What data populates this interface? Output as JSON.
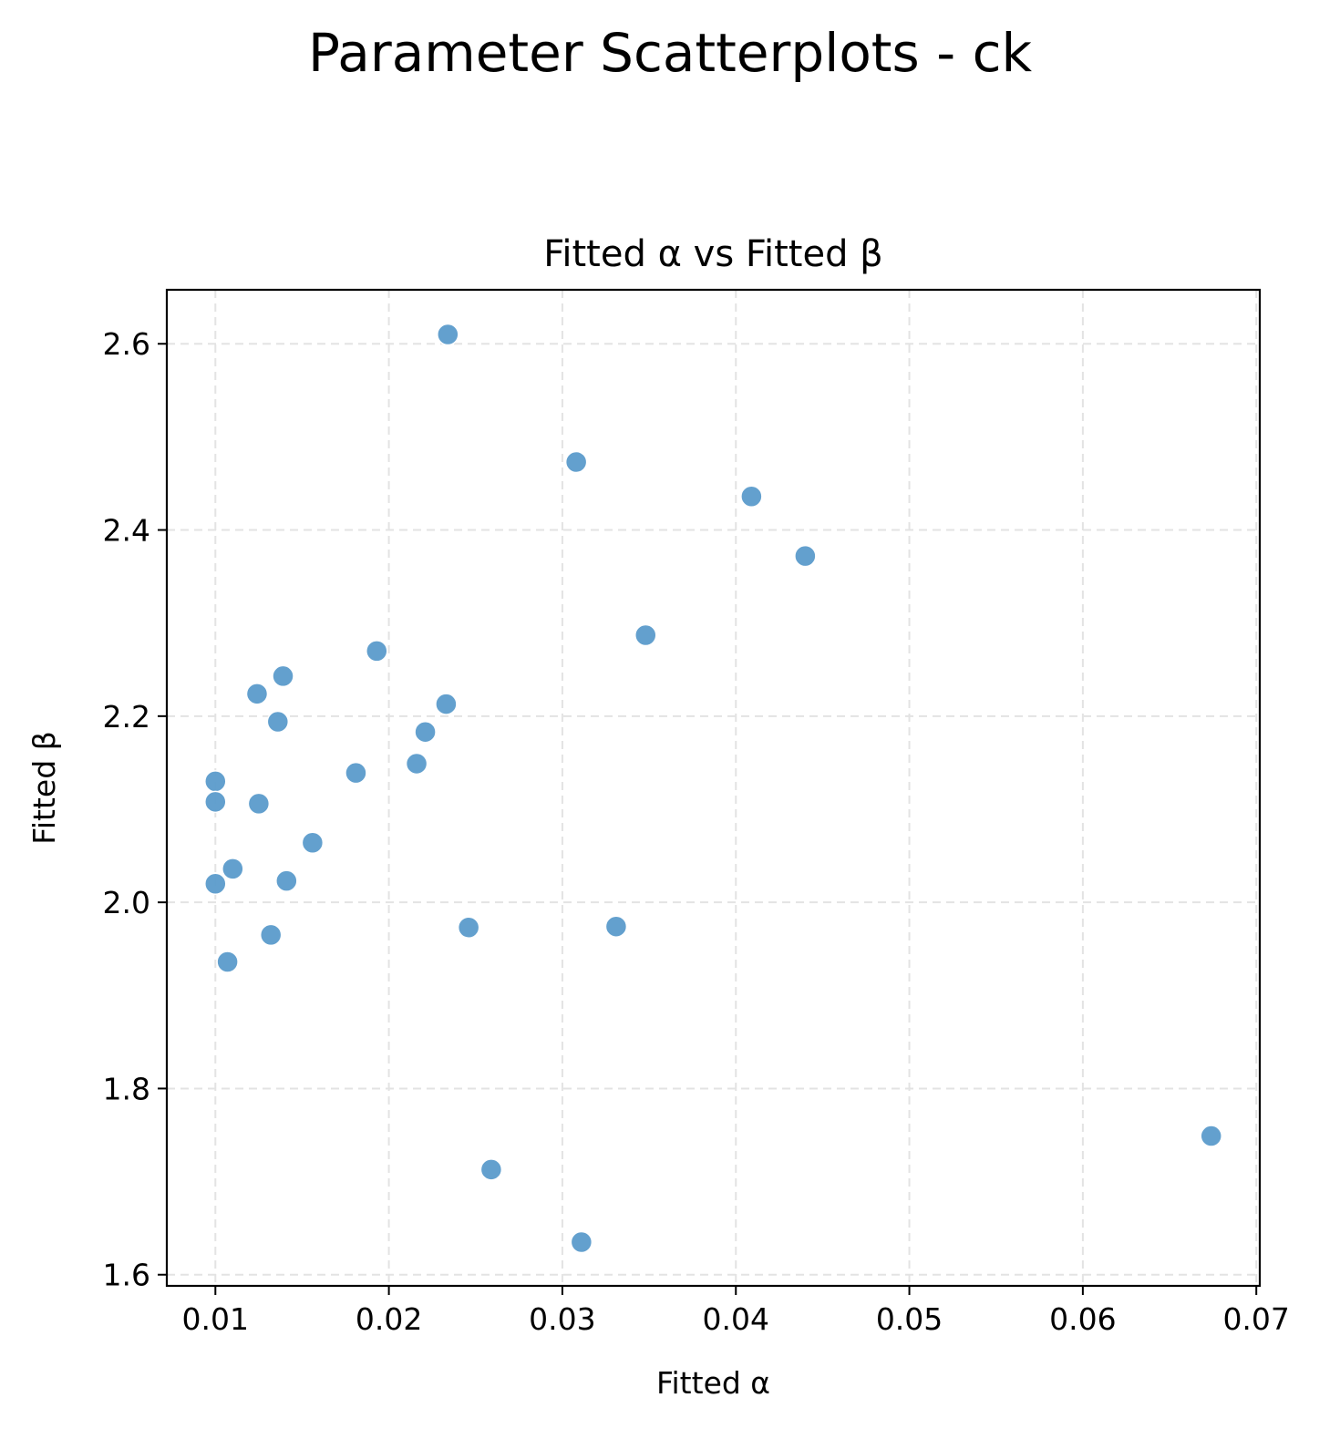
{
  "figure": {
    "suptitle": "Parameter Scatterplots - ck"
  },
  "chart_data": {
    "type": "scatter",
    "title": "Fitted α vs Fitted β",
    "xlabel": "Fitted α",
    "ylabel": "Fitted β",
    "xlim": [
      0.0072,
      0.0702
    ],
    "ylim": [
      1.588,
      2.658
    ],
    "xticks": [
      0.01,
      0.02,
      0.03,
      0.04,
      0.05,
      0.06,
      0.07
    ],
    "xtick_labels": [
      "0.01",
      "0.02",
      "0.03",
      "0.04",
      "0.05",
      "0.06",
      "0.07"
    ],
    "yticks": [
      1.6,
      1.8,
      2.0,
      2.2,
      2.4,
      2.6
    ],
    "ytick_labels": [
      "1.6",
      "1.8",
      "2.0",
      "2.2",
      "2.4",
      "2.6"
    ],
    "grid": true,
    "marker_color": "#5b9bcb",
    "points": [
      {
        "x": 0.0234,
        "y": 2.61
      },
      {
        "x": 0.0308,
        "y": 2.473
      },
      {
        "x": 0.0409,
        "y": 2.436
      },
      {
        "x": 0.044,
        "y": 2.372
      },
      {
        "x": 0.0348,
        "y": 2.287
      },
      {
        "x": 0.0193,
        "y": 2.27
      },
      {
        "x": 0.0139,
        "y": 2.243
      },
      {
        "x": 0.0124,
        "y": 2.224
      },
      {
        "x": 0.0233,
        "y": 2.213
      },
      {
        "x": 0.0136,
        "y": 2.194
      },
      {
        "x": 0.0221,
        "y": 2.183
      },
      {
        "x": 0.0216,
        "y": 2.149
      },
      {
        "x": 0.0181,
        "y": 2.139
      },
      {
        "x": 0.01,
        "y": 2.13
      },
      {
        "x": 0.01,
        "y": 2.108
      },
      {
        "x": 0.0125,
        "y": 2.106
      },
      {
        "x": 0.0156,
        "y": 2.064
      },
      {
        "x": 0.011,
        "y": 2.036
      },
      {
        "x": 0.0141,
        "y": 2.023
      },
      {
        "x": 0.01,
        "y": 2.02
      },
      {
        "x": 0.0246,
        "y": 1.973
      },
      {
        "x": 0.0331,
        "y": 1.974
      },
      {
        "x": 0.0132,
        "y": 1.965
      },
      {
        "x": 0.0107,
        "y": 1.936
      },
      {
        "x": 0.0674,
        "y": 1.749
      },
      {
        "x": 0.0259,
        "y": 1.713
      },
      {
        "x": 0.0311,
        "y": 1.635
      }
    ]
  }
}
